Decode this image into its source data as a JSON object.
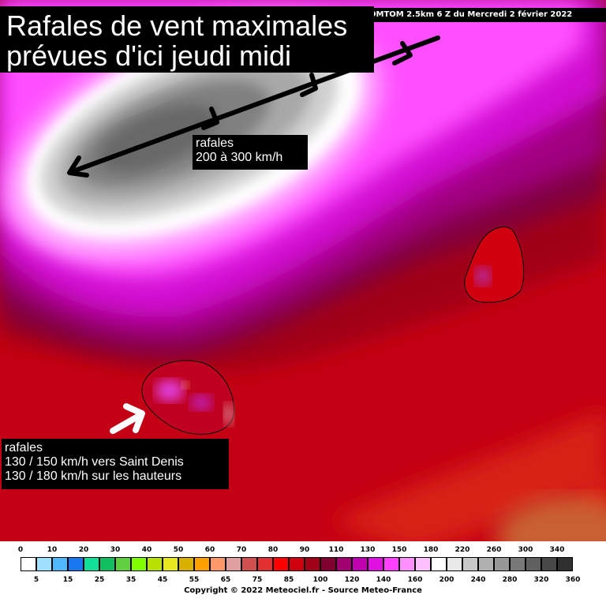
{
  "header": {
    "model_run": "OMTOM 2.5km 6 Z du Mercredi 2 février 2022"
  },
  "title": {
    "line1": "Rafales de vent maximales",
    "line2": "prévues d'ici jeudi midi"
  },
  "annotations": {
    "cyclone_label": {
      "line1": "rafales",
      "line2": "200 à 300 km/h"
    },
    "island_label": {
      "line1": "rafales",
      "line2": "130 / 150 km/h vers Saint Denis",
      "line3": "130 / 180 km/h sur les hauteurs"
    }
  },
  "legend": {
    "top_labels": [
      "0",
      "10",
      "20",
      "30",
      "40",
      "50",
      "60",
      "70",
      "80",
      "90",
      "110",
      "130",
      "150",
      "180",
      "220",
      "260",
      "300",
      "340"
    ],
    "bottom_labels": [
      "5",
      "15",
      "25",
      "35",
      "45",
      "55",
      "65",
      "75",
      "85",
      "100",
      "120",
      "140",
      "160",
      "200",
      "240",
      "280",
      "320",
      "360"
    ],
    "colors": [
      "#ffffff",
      "#a0e0ff",
      "#50b8ff",
      "#1878f0",
      "#10e098",
      "#10c060",
      "#60d040",
      "#80ff00",
      "#b8e000",
      "#e8e820",
      "#d8b000",
      "#ffa000",
      "#ff9868",
      "#e0a0a0",
      "#d05050",
      "#e03030",
      "#ff0000",
      "#d00010",
      "#a00018",
      "#800030",
      "#a00070",
      "#c000b0",
      "#e010e0",
      "#ff40ff",
      "#ff90ff",
      "#ffc0ff",
      "#ffffff",
      "#e8e8e8",
      "#c8c8c8",
      "#b0b0b0",
      "#989898",
      "#787878",
      "#606060",
      "#484848",
      "#303030"
    ]
  },
  "footer": {
    "copyright": "Copyright © 2022 Meteociel.fr - Source Meteo-France"
  }
}
